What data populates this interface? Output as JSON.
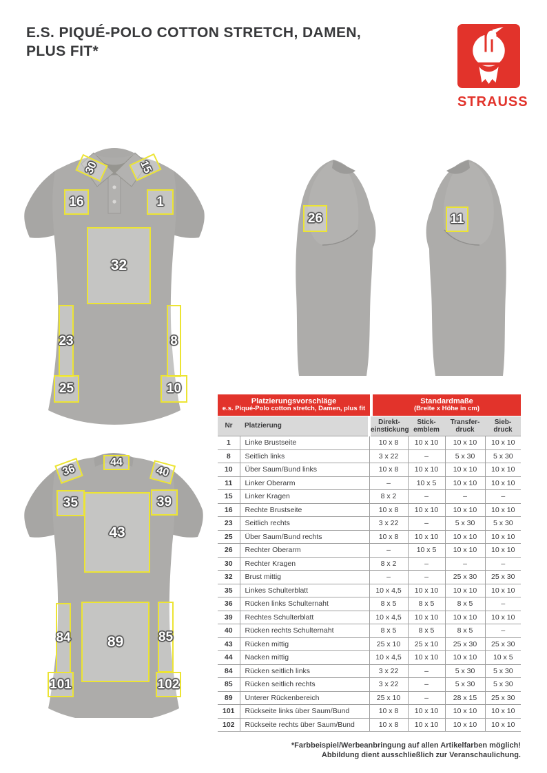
{
  "header": {
    "title_line1": "E.S. PIQUÉ-POLO COTTON STRETCH, DAMEN,",
    "title_line2": "PLUS FIT*"
  },
  "brand": {
    "name": "STRAUSS",
    "logo_icon": "strauss-ostrich-icon",
    "accent_color": "#e2332b"
  },
  "colors": {
    "accent_red": "#e2332b",
    "marker_yellow": "#ece433",
    "shirt_gray": "#adacaa",
    "table_head_gray": "#d9d9d9",
    "text_dark": "#3a3a3c"
  },
  "placement_markers": {
    "front_view": [
      "30",
      "15",
      "16",
      "1",
      "32",
      "23",
      "8",
      "25",
      "10"
    ],
    "left_side_view": [
      "26"
    ],
    "right_side_view": [
      "11"
    ],
    "back_view": [
      "44",
      "36",
      "40",
      "35",
      "39",
      "43",
      "84",
      "89",
      "85",
      "101",
      "102"
    ]
  },
  "table": {
    "header_left": {
      "line1": "Platzierungsvorschläge",
      "line2": "e.s. Piqué-Polo cotton stretch, Damen, plus fit"
    },
    "header_right": {
      "line1": "Standardmaße",
      "line2": "(Breite x Höhe in cm)"
    },
    "columns": {
      "nr": "Nr",
      "placement": "Platzierung",
      "direct_embroidery": "Direkt-\neinstickung",
      "stick_emblem": "Stick-\nemblem",
      "transfer_print": "Transfer-\ndruck",
      "screen_print": "Sieb-\ndruck"
    },
    "rows": [
      {
        "nr": "1",
        "name": "Linke Brustseite",
        "sizes": [
          "10 x 8",
          "10 x 10",
          "10 x 10",
          "10 x 10"
        ]
      },
      {
        "nr": "8",
        "name": "Seitlich links",
        "sizes": [
          "3 x 22",
          "–",
          "5 x 30",
          "5 x 30"
        ]
      },
      {
        "nr": "10",
        "name": "Über Saum/Bund links",
        "sizes": [
          "10 x 8",
          "10 x 10",
          "10 x 10",
          "10 x 10"
        ]
      },
      {
        "nr": "11",
        "name": "Linker Oberarm",
        "sizes": [
          "–",
          "10 x 5",
          "10 x 10",
          "10 x 10"
        ]
      },
      {
        "nr": "15",
        "name": "Linker Kragen",
        "sizes": [
          "8 x 2",
          "–",
          "–",
          "–"
        ]
      },
      {
        "nr": "16",
        "name": "Rechte Brustseite",
        "sizes": [
          "10 x 8",
          "10 x 10",
          "10 x 10",
          "10 x 10"
        ]
      },
      {
        "nr": "23",
        "name": "Seitlich rechts",
        "sizes": [
          "3 x 22",
          "–",
          "5 x 30",
          "5 x 30"
        ]
      },
      {
        "nr": "25",
        "name": "Über Saum/Bund rechts",
        "sizes": [
          "10 x 8",
          "10 x 10",
          "10 x 10",
          "10 x 10"
        ]
      },
      {
        "nr": "26",
        "name": "Rechter Oberarm",
        "sizes": [
          "–",
          "10 x 5",
          "10 x 10",
          "10 x 10"
        ]
      },
      {
        "nr": "30",
        "name": "Rechter Kragen",
        "sizes": [
          "8 x 2",
          "–",
          "–",
          "–"
        ]
      },
      {
        "nr": "32",
        "name": "Brust mittig",
        "sizes": [
          "–",
          "–",
          "25 x 30",
          "25 x 30"
        ]
      },
      {
        "nr": "35",
        "name": "Linkes Schulterblatt",
        "sizes": [
          "10 x 4,5",
          "10 x 10",
          "10 x 10",
          "10 x 10"
        ]
      },
      {
        "nr": "36",
        "name": "Rücken links Schulternaht",
        "sizes": [
          "8 x 5",
          "8 x 5",
          "8 x 5",
          "–"
        ]
      },
      {
        "nr": "39",
        "name": "Rechtes Schulterblatt",
        "sizes": [
          "10 x 4,5",
          "10 x 10",
          "10 x 10",
          "10 x 10"
        ]
      },
      {
        "nr": "40",
        "name": "Rücken rechts Schulternaht",
        "sizes": [
          "8 x 5",
          "8 x 5",
          "8 x 5",
          "–"
        ]
      },
      {
        "nr": "43",
        "name": "Rücken mittig",
        "sizes": [
          "25 x 10",
          "25 x 10",
          "25 x 30",
          "25 x 30"
        ]
      },
      {
        "nr": "44",
        "name": "Nacken mittig",
        "sizes": [
          "10 x 4,5",
          "10 x 10",
          "10 x 10",
          "10 x 5"
        ]
      },
      {
        "nr": "84",
        "name": "Rücken seitlich links",
        "sizes": [
          "3 x 22",
          "–",
          "5 x 30",
          "5 x 30"
        ]
      },
      {
        "nr": "85",
        "name": "Rücken seitlich rechts",
        "sizes": [
          "3 x 22",
          "–",
          "5 x 30",
          "5 x 30"
        ]
      },
      {
        "nr": "89",
        "name": "Unterer Rückenbereich",
        "sizes": [
          "25 x 10",
          "–",
          "28 x 15",
          "25 x 30"
        ]
      },
      {
        "nr": "101",
        "name": "Rückseite links über Saum/Bund",
        "sizes": [
          "10 x 8",
          "10 x 10",
          "10 x 10",
          "10 x 10"
        ]
      },
      {
        "nr": "102",
        "name": "Rückseite rechts über Saum/Bund",
        "sizes": [
          "10 x 8",
          "10 x 10",
          "10 x 10",
          "10 x 10"
        ]
      }
    ]
  },
  "footer": {
    "line1": "*Farbbeispiel/Werbeanbringung auf allen Artikelfarben möglich!",
    "line2": "Abbildung dient ausschließlich zur Veranschaulichung."
  }
}
